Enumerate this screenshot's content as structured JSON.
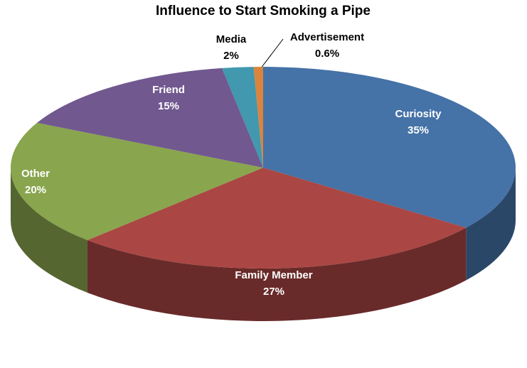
{
  "chart_data": {
    "type": "pie3d",
    "title": "Influence to Start Smoking a Pipe",
    "categories": [
      "Curiosity",
      "Family Member",
      "Other",
      "Friend",
      "Media",
      "Advertisement"
    ],
    "values": [
      35,
      27,
      20,
      15,
      2,
      0.6
    ],
    "value_labels": [
      "35%",
      "27%",
      "20%",
      "15%",
      "2%",
      "0.6%"
    ],
    "colors": [
      "#4572a7",
      "#aa4643",
      "#89a54e",
      "#71588f",
      "#4198af",
      "#db843d"
    ]
  }
}
